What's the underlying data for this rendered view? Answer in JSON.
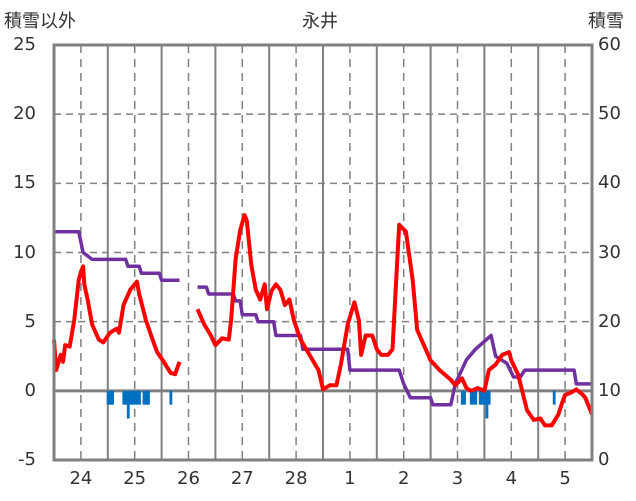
{
  "chart_data": {
    "type": "line",
    "title": "永井",
    "ylabel_left": "積雪以外",
    "ylabel_right": "積雪",
    "x_unit": "hours since day 24 00:00",
    "xlim": [
      0,
      240
    ],
    "ylim_left": [
      -5,
      25
    ],
    "ylim_right": [
      0,
      60
    ],
    "left_ticks": [
      "-5",
      "0",
      "5",
      "10",
      "15",
      "20",
      "25"
    ],
    "right_ticks": [
      "0",
      "10",
      "20",
      "30",
      "40",
      "50",
      "60"
    ],
    "x_ticks": [
      "24",
      "25",
      "26",
      "27",
      "28",
      "1",
      "2",
      "3",
      "4",
      "5"
    ],
    "grid": true,
    "colors": {
      "temperature": "#ff0000",
      "snow_depth": "#7030a0",
      "precip": "#0070c0",
      "grid": "#808080"
    },
    "series": [
      {
        "name": "temperature",
        "axis": "left",
        "points": [
          [
            0,
            3.7
          ],
          [
            1,
            1.5
          ],
          [
            3,
            2.6
          ],
          [
            4,
            2.1
          ],
          [
            5,
            3.3
          ],
          [
            7,
            3.2
          ],
          [
            9,
            5.1
          ],
          [
            11,
            8.0
          ],
          [
            12,
            8.6
          ],
          [
            13,
            9.0
          ],
          [
            13.5,
            7.7
          ],
          [
            15,
            6.6
          ],
          [
            17,
            4.8
          ],
          [
            20,
            3.7
          ],
          [
            22,
            3.5
          ],
          [
            25,
            4.2
          ],
          [
            28,
            4.5
          ],
          [
            29,
            4.2
          ],
          [
            31,
            6.2
          ],
          [
            34,
            7.3
          ],
          [
            37,
            7.9
          ],
          [
            38,
            7.0
          ],
          [
            41,
            5.1
          ],
          [
            44,
            3.7
          ],
          [
            46,
            2.8
          ],
          [
            49,
            2.1
          ],
          [
            52,
            1.3
          ],
          [
            54,
            1.2
          ],
          [
            56,
            2.1
          ],
          null,
          [
            64,
            5.9
          ],
          [
            67,
            4.8
          ],
          [
            70,
            4.0
          ],
          [
            72,
            3.3
          ],
          [
            75,
            3.8
          ],
          [
            78,
            3.7
          ],
          [
            79,
            5.1
          ],
          [
            81,
            9.5
          ],
          [
            83,
            11.6
          ],
          [
            85,
            12.7
          ],
          [
            86,
            12.3
          ],
          [
            88,
            9.1
          ],
          [
            90,
            7.3
          ],
          [
            92,
            6.6
          ],
          [
            94,
            7.7
          ],
          [
            95,
            5.9
          ],
          [
            97,
            7.2
          ],
          [
            99,
            7.7
          ],
          [
            101,
            7.3
          ],
          [
            103,
            6.2
          ],
          [
            105,
            6.6
          ],
          [
            107,
            5.1
          ],
          [
            110,
            3.7
          ],
          [
            114,
            2.6
          ],
          [
            118,
            1.5
          ],
          [
            120,
            0.1
          ],
          [
            123,
            0.4
          ],
          [
            126,
            0.4
          ],
          [
            128,
            1.9
          ],
          [
            131,
            4.8
          ],
          [
            134,
            6.4
          ],
          [
            136,
            5.1
          ],
          [
            137,
            2.6
          ],
          [
            139,
            4.0
          ],
          [
            142,
            4.0
          ],
          [
            144,
            3.0
          ],
          [
            146,
            2.6
          ],
          [
            149,
            2.6
          ],
          [
            151,
            3.0
          ],
          [
            153,
            9.1
          ],
          [
            154,
            12.0
          ],
          [
            157,
            11.5
          ],
          [
            160,
            8.0
          ],
          [
            162,
            4.4
          ],
          [
            165,
            3.3
          ],
          [
            168,
            2.2
          ],
          [
            172,
            1.5
          ],
          [
            177,
            0.8
          ],
          [
            179,
            0.4
          ],
          [
            182,
            0.9
          ],
          [
            184,
            0.2
          ],
          [
            186,
            0.0
          ],
          [
            189,
            0.2
          ],
          [
            192,
            0.0
          ],
          [
            194,
            1.5
          ],
          [
            197,
            1.9
          ],
          [
            200,
            2.6
          ],
          [
            203,
            2.8
          ],
          [
            204,
            2.2
          ],
          [
            207,
            1.2
          ],
          [
            211,
            -1.4
          ],
          [
            214,
            -2.1
          ],
          [
            217,
            -2.0
          ],
          [
            219,
            -2.5
          ],
          [
            222,
            -2.5
          ],
          [
            225,
            -1.7
          ],
          [
            227,
            -0.7
          ],
          [
            228,
            -0.3
          ],
          [
            231,
            -0.1
          ],
          [
            233,
            0.1
          ],
          [
            236,
            -0.3
          ],
          [
            237,
            -0.5
          ],
          [
            240,
            -1.7
          ]
        ]
      },
      {
        "name": "snow_depth",
        "axis": "right",
        "points": [
          [
            0,
            33
          ],
          [
            11,
            33
          ],
          [
            13,
            30
          ],
          [
            17,
            29
          ],
          [
            32,
            29
          ],
          [
            33,
            28
          ],
          [
            38,
            28
          ],
          [
            39,
            27
          ],
          [
            47,
            27
          ],
          [
            48,
            26
          ],
          [
            56,
            26
          ],
          null,
          [
            64,
            25
          ],
          [
            68,
            25
          ],
          [
            69,
            24
          ],
          [
            80,
            24
          ],
          [
            81,
            23
          ],
          [
            83,
            23
          ],
          [
            84,
            21
          ],
          [
            90,
            21
          ],
          [
            91,
            20
          ],
          [
            98,
            20
          ],
          [
            99,
            18
          ],
          [
            110,
            18
          ],
          [
            111,
            16
          ],
          [
            131,
            16
          ],
          [
            132,
            13
          ],
          [
            154,
            13
          ],
          [
            156,
            11
          ],
          [
            159,
            9
          ],
          [
            168,
            9
          ],
          [
            169,
            8
          ],
          [
            177,
            8
          ],
          [
            179,
            11
          ],
          [
            184,
            14.5
          ],
          [
            188,
            16
          ],
          [
            195,
            18
          ],
          [
            197,
            15
          ],
          [
            202,
            14
          ],
          [
            205,
            12
          ],
          [
            208,
            12
          ],
          [
            210,
            13
          ],
          [
            232,
            13
          ],
          [
            233,
            11
          ],
          [
            240,
            11
          ]
        ]
      },
      {
        "name": "precipitation",
        "axis": "left",
        "type": "bar",
        "points": [
          [
            24,
            -1
          ],
          [
            25,
            -1
          ],
          [
            26,
            -1
          ],
          [
            31,
            -1
          ],
          [
            32,
            -1
          ],
          [
            33,
            -2
          ],
          [
            34,
            -1
          ],
          [
            35,
            -1
          ],
          [
            36,
            -1
          ],
          [
            37,
            -1
          ],
          [
            38,
            -1
          ],
          [
            40,
            -1
          ],
          [
            41,
            -1
          ],
          [
            42,
            -1
          ],
          [
            52,
            -1
          ],
          [
            182,
            -1
          ],
          [
            183,
            -1
          ],
          [
            186,
            -1
          ],
          [
            187,
            -1
          ],
          [
            188,
            -1
          ],
          [
            190,
            -1
          ],
          [
            191,
            -1
          ],
          [
            192,
            -1
          ],
          [
            193,
            -2
          ],
          [
            194,
            -1
          ],
          [
            223,
            -1
          ]
        ]
      }
    ]
  }
}
